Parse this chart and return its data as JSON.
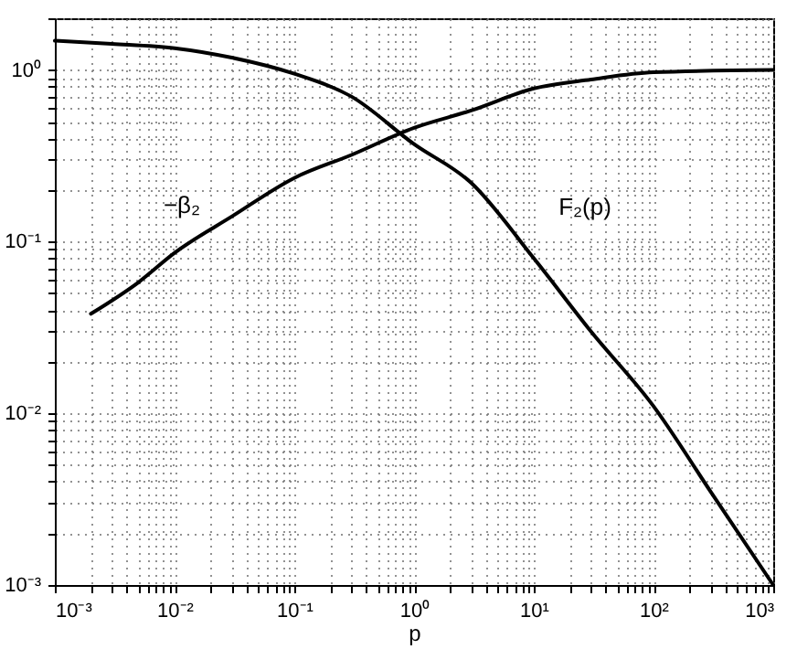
{
  "chart_data": {
    "type": "line",
    "xlabel": "p",
    "log": "xy",
    "grid": true,
    "xlim": [
      0.001,
      1000
    ],
    "ylim": [
      0.001,
      2
    ],
    "xticks": [
      {
        "value": 0.001,
        "label": "10⁻³"
      },
      {
        "value": 0.01,
        "label": "10⁻²"
      },
      {
        "value": 0.1,
        "label": "10⁻¹"
      },
      {
        "value": 1,
        "label": "10⁰"
      },
      {
        "value": 10,
        "label": "10¹"
      },
      {
        "value": 100,
        "label": "10²"
      },
      {
        "value": 1000,
        "label": "10³"
      }
    ],
    "yticks": [
      {
        "value": 0.001,
        "label": "10⁻³"
      },
      {
        "value": 0.01,
        "label": "10⁻²"
      },
      {
        "value": 0.1,
        "label": "10⁻¹"
      },
      {
        "value": 1,
        "label": "10⁰"
      }
    ],
    "series": [
      {
        "name": "F₂(p)",
        "color": "#000000",
        "x": [
          0.001,
          0.003,
          0.01,
          0.03,
          0.1,
          0.3,
          1,
          3,
          10,
          30,
          100,
          300,
          1000
        ],
        "values": [
          1.48,
          1.42,
          1.34,
          1.18,
          0.95,
          0.7,
          0.37,
          0.22,
          0.08,
          0.03,
          0.011,
          0.0035,
          0.001
        ]
      },
      {
        "name": "−β₂",
        "color": "#000000",
        "x": [
          0.002,
          0.005,
          0.01,
          0.03,
          0.1,
          0.3,
          1,
          3,
          10,
          30,
          100,
          1000
        ],
        "values": [
          0.038,
          0.058,
          0.086,
          0.14,
          0.235,
          0.32,
          0.46,
          0.58,
          0.78,
          0.88,
          0.97,
          1.0
        ]
      }
    ],
    "line_style": "solid"
  }
}
